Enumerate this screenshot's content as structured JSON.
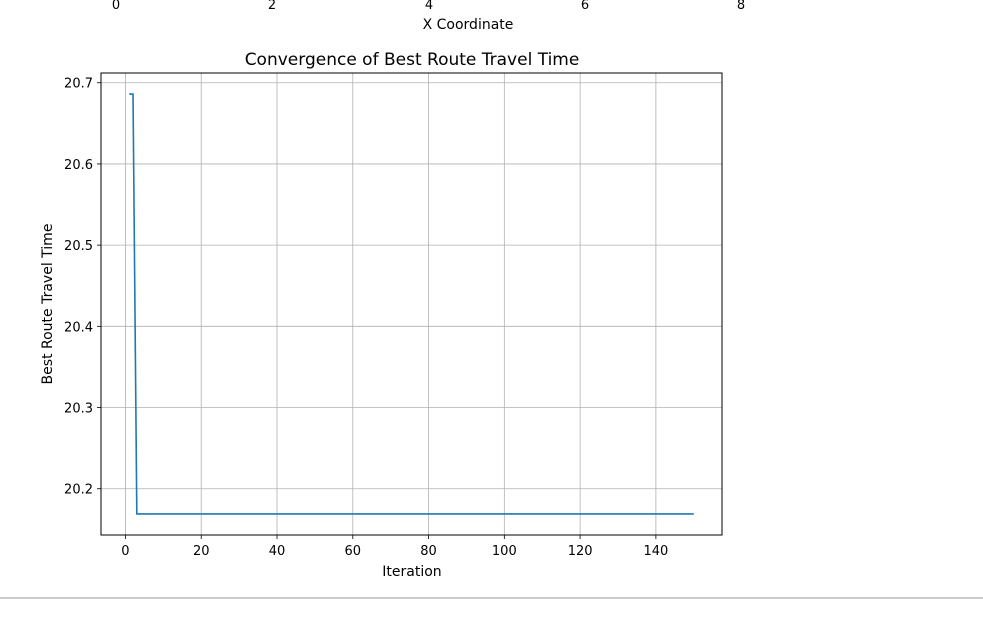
{
  "previous_chart": {
    "xticks": [
      "0",
      "2",
      "4",
      "6",
      "8"
    ],
    "xlabel": "X Coordinate"
  },
  "chart_data": {
    "type": "line",
    "title": "Convergence of Best Route Travel Time",
    "xlabel": "Iteration",
    "ylabel": "Best Route Travel Time",
    "xlim": [
      -6.45,
      157.45
    ],
    "ylim": [
      20.143,
      20.712
    ],
    "xticks": [
      0,
      20,
      40,
      60,
      80,
      100,
      120,
      140
    ],
    "yticks": [
      20.2,
      20.3,
      20.4,
      20.5,
      20.6,
      20.7
    ],
    "ytick_labels": [
      "20.2",
      "20.3",
      "20.4",
      "20.5",
      "20.6",
      "20.7"
    ],
    "grid": true,
    "series": [
      {
        "color": "#1f77b4",
        "x": [
          1,
          2,
          3,
          150
        ],
        "y": [
          20.686,
          20.686,
          20.169,
          20.169
        ]
      }
    ]
  }
}
